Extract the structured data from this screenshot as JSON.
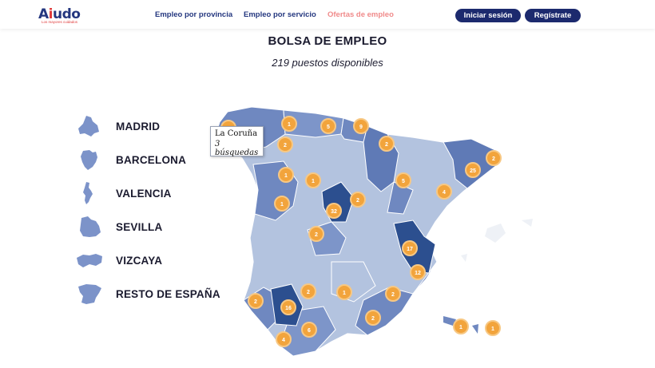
{
  "header": {
    "logo_text_a": "A",
    "logo_text_i": "i",
    "logo_text_rest": "udo",
    "logo_tagline": "Los mayores cuidados",
    "nav": [
      {
        "label": "Empleo por provincia",
        "active": false
      },
      {
        "label": "Empleo por servicio",
        "active": false
      },
      {
        "label": "Ofertas de empleo",
        "active": true
      }
    ],
    "login_label": "Iniciar sesión",
    "register_label": "Regístrate"
  },
  "main": {
    "title": "BOLSA DE EMPLEO",
    "subtitle": "219 puestos disponibles"
  },
  "regions": [
    {
      "label": "MADRID",
      "icon": "madrid-map-icon"
    },
    {
      "label": "BARCELONA",
      "icon": "barcelona-map-icon"
    },
    {
      "label": "VALENCIA",
      "icon": "valencia-map-icon"
    },
    {
      "label": "SEVILLA",
      "icon": "sevilla-map-icon"
    },
    {
      "label": "VIZCAYA",
      "icon": "vizcaya-map-icon"
    },
    {
      "label": "RESTO DE ESPAÑA",
      "icon": "spain-map-icon"
    }
  ],
  "tooltip": {
    "province": "La Coruña",
    "count": "3 búsquedas"
  },
  "badges": [
    "1",
    "5",
    "9",
    "2",
    "2",
    "2",
    "1",
    "1",
    "5",
    "2",
    "2",
    "25",
    "4",
    "1",
    "2",
    "32",
    "2",
    "17",
    "12",
    "2",
    "2",
    "1",
    "2",
    "16",
    "2",
    "6",
    "4",
    "1",
    "1"
  ],
  "colors": {
    "brand_navy": "#1c2a6e",
    "nav_active": "#f08a8a",
    "badge_orange": "#f2a43c",
    "map_light": "#b3c3df",
    "map_mid": "#6f88c0",
    "map_dark": "#2c4f8f"
  }
}
